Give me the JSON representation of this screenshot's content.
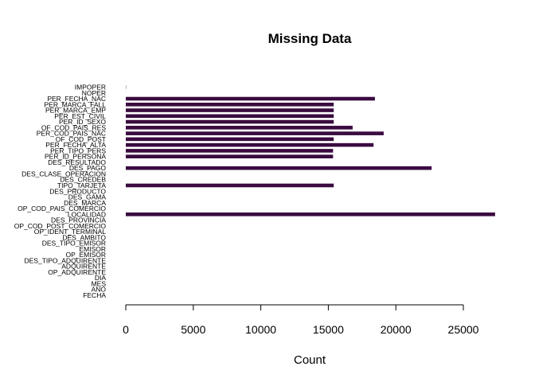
{
  "chart_data": {
    "type": "bar",
    "orientation": "horizontal",
    "title": "Missing Data",
    "xlabel": "Count",
    "ylabel": "",
    "xlim": [
      0,
      27500
    ],
    "xticks": [
      "0",
      "5000",
      "10000",
      "15000",
      "20000",
      "25000"
    ],
    "xtick_values": [
      0,
      5000,
      10000,
      15000,
      20000,
      25000
    ],
    "bar_color": "#3a0a40",
    "categories": [
      "IMPOPER",
      "NOPER",
      "PER_FECHA_NAC",
      "PER_MARCA_FALL",
      "PER_MARCA_EMP",
      "PER_EST_CIVIL",
      "PER_ID_SEXO",
      "OF_COD_PAIS_RES",
      "PER_COD_PAIS_NAC",
      "OF_COD_POST",
      "PER_FECHA_ALTA",
      "PER_TIPO_PERS",
      "PER_ID_PERSONA",
      "DES_RESULTADO",
      "DES_PAGO",
      "DES_CLASE_OPERACION",
      "DES_CREDEB",
      "TIPO_TARJETA",
      "DES_PRODUCTO",
      "DES_GAMA",
      "DES_MARCA",
      "OP_COD_PAIS_COMERCIO",
      "LOCALIDAD",
      "DES_PROVINCIA",
      "OP_COD_POST_COMERCIO",
      "OP_IDENT_TERMINAL",
      "DES_AMBITO",
      "DES_TIPO_EMISOR",
      "EMISOR",
      "OP_EMISOR",
      "DES_TIPO_ADQUIRENTE",
      "ADQUIRENTE",
      "OP_ADQUIRENTE",
      "DIA",
      "MES",
      "ANO",
      "FECHA"
    ],
    "values": [
      20,
      0,
      18450,
      15400,
      15400,
      15400,
      15400,
      16800,
      19100,
      15400,
      18350,
      15350,
      15350,
      0,
      22650,
      0,
      0,
      15400,
      0,
      0,
      0,
      0,
      27350,
      0,
      0,
      0,
      0,
      0,
      0,
      0,
      0,
      0,
      0,
      0,
      0,
      0,
      0
    ]
  }
}
